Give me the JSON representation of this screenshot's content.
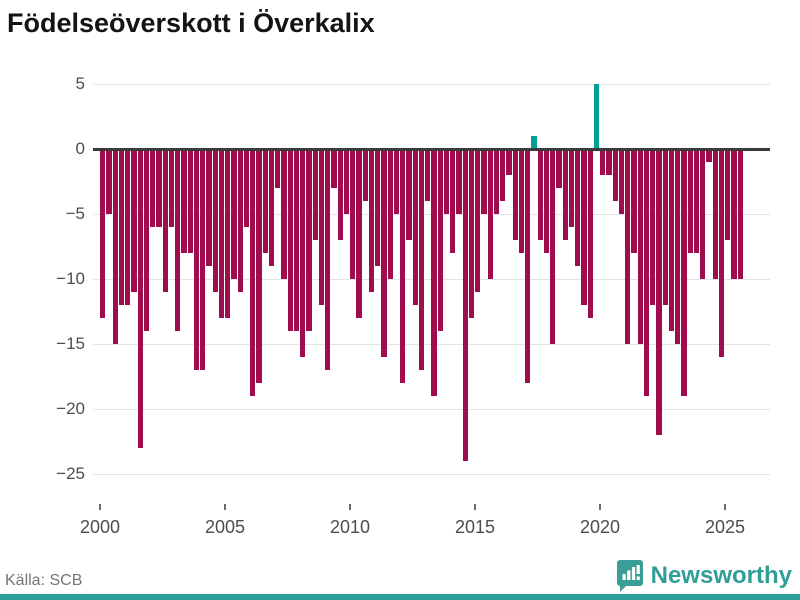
{
  "header": {
    "title": "Födelseöverskott i Överkalix"
  },
  "footer": {
    "source_label": "Källa: SCB",
    "brand_name": "Newsworthy"
  },
  "chart_data": {
    "type": "bar",
    "title": "Födelseöverskott i Överkalix",
    "xlabel": "",
    "ylabel": "",
    "ylim": [
      -25,
      5
    ],
    "grid": true,
    "legend": "none",
    "start_year": 2000,
    "start_quarter": 1,
    "frequency": "quarterly",
    "y_ticks": [
      5,
      0,
      -5,
      -10,
      -15,
      -20,
      -25
    ],
    "y_tick_labels": [
      "5",
      "0",
      "−5",
      "−10",
      "−15",
      "−20",
      "−25"
    ],
    "x_ticks": [
      2000,
      2005,
      2010,
      2015,
      2020,
      2025
    ],
    "x_tick_labels": [
      "2000",
      "2005",
      "2010",
      "2015",
      "2020",
      "2025"
    ],
    "colors": {
      "negative": "#a00c4e",
      "positive": "#00a099",
      "axis": "#3a3a3a",
      "grid": "#e4e4e4",
      "brand_teal": "#2f9e96",
      "text_gray": "#4d4d4d"
    },
    "series": [
      {
        "name": "Födelseöverskott",
        "values": [
          -13,
          -5,
          -15,
          -12,
          -12,
          -11,
          -23,
          -14,
          -6,
          -6,
          -11,
          -6,
          -14,
          -8,
          -8,
          -17,
          -17,
          -9,
          -11,
          -13,
          -13,
          -10,
          -11,
          -6,
          -19,
          -18,
          -8,
          -9,
          -3,
          -10,
          -14,
          -14,
          -16,
          -14,
          -7,
          -12,
          -17,
          -3,
          -7,
          -5,
          -10,
          -13,
          -4,
          -11,
          -9,
          -16,
          -10,
          -5,
          -18,
          -7,
          -12,
          -17,
          -4,
          -19,
          -14,
          -5,
          -8,
          -5,
          -24,
          -13,
          -11,
          -5,
          -10,
          -5,
          -4,
          -2,
          -7,
          -8,
          -18,
          1,
          -7,
          -8,
          -15,
          -3,
          -7,
          -6,
          -9,
          -12,
          -13,
          5,
          -2,
          -2,
          -4,
          -5,
          -15,
          -8,
          -15,
          -19,
          -12,
          -22,
          -12,
          -14,
          -15,
          -19,
          -8,
          -8,
          -10,
          -1,
          -10,
          -16,
          -7,
          -10,
          -10
        ]
      }
    ]
  }
}
